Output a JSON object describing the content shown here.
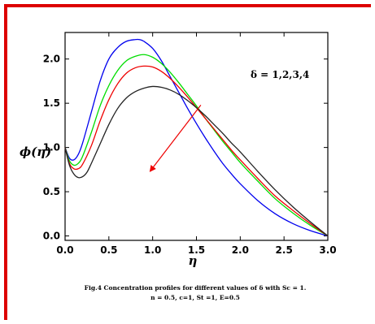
{
  "frame_color": "#dd0000",
  "chart_data": {
    "type": "line",
    "title": "",
    "xlabel": "η",
    "ylabel": "ϕ(η)",
    "xlim": [
      0,
      3.0
    ],
    "ylim": [
      -0.05,
      2.3
    ],
    "xticks": [
      0.0,
      0.5,
      1.0,
      1.5,
      2.0,
      2.5,
      3.0
    ],
    "xtick_labels": [
      "0.0",
      "0.5",
      "1.0",
      "1.5",
      "2.0",
      "2.5",
      "3.0"
    ],
    "yticks": [
      0.0,
      0.5,
      1.0,
      1.5,
      2.0
    ],
    "ytick_labels": [
      "0.0",
      "0.5",
      "1.0",
      "1.5",
      "2.0"
    ],
    "grid": false,
    "legend": "none",
    "annotation": {
      "text": "δ = 1,2,3,4",
      "arrow_from": [
        1.55,
        1.48
      ],
      "arrow_to": [
        0.97,
        0.73
      ],
      "arrow_color": "#ee0000"
    },
    "series": [
      {
        "color": "#0000ee",
        "x": [
          0.0,
          0.05,
          0.1,
          0.15,
          0.2,
          0.3,
          0.4,
          0.5,
          0.6,
          0.7,
          0.8,
          0.85,
          0.9,
          1.0,
          1.1,
          1.2,
          1.3,
          1.4,
          1.5,
          1.6,
          1.7,
          1.8,
          1.9,
          2.0,
          2.2,
          2.4,
          2.6,
          2.8,
          3.0
        ],
        "y": [
          1.0,
          0.88,
          0.86,
          0.92,
          1.05,
          1.4,
          1.75,
          2.0,
          2.13,
          2.2,
          2.22,
          2.22,
          2.2,
          2.12,
          1.98,
          1.8,
          1.62,
          1.44,
          1.27,
          1.11,
          0.96,
          0.82,
          0.7,
          0.59,
          0.4,
          0.25,
          0.14,
          0.06,
          0.0
        ]
      },
      {
        "color": "#00dd00",
        "x": [
          0.0,
          0.05,
          0.1,
          0.15,
          0.2,
          0.3,
          0.4,
          0.5,
          0.6,
          0.7,
          0.8,
          0.9,
          1.0,
          1.1,
          1.2,
          1.3,
          1.4,
          1.5,
          1.6,
          1.7,
          1.8,
          1.9,
          2.0,
          2.2,
          2.4,
          2.6,
          2.8,
          3.0
        ],
        "y": [
          1.0,
          0.85,
          0.8,
          0.82,
          0.9,
          1.17,
          1.47,
          1.7,
          1.87,
          1.98,
          2.03,
          2.05,
          2.02,
          1.95,
          1.85,
          1.73,
          1.6,
          1.47,
          1.33,
          1.2,
          1.07,
          0.95,
          0.83,
          0.62,
          0.42,
          0.26,
          0.12,
          0.0
        ]
      },
      {
        "color": "#ee0000",
        "x": [
          0.0,
          0.05,
          0.1,
          0.15,
          0.2,
          0.3,
          0.4,
          0.5,
          0.6,
          0.7,
          0.8,
          0.9,
          1.0,
          1.1,
          1.2,
          1.3,
          1.4,
          1.5,
          1.6,
          1.7,
          1.8,
          1.9,
          2.0,
          2.2,
          2.4,
          2.6,
          2.8,
          3.0
        ],
        "y": [
          1.0,
          0.82,
          0.76,
          0.76,
          0.81,
          1.02,
          1.3,
          1.54,
          1.72,
          1.84,
          1.9,
          1.92,
          1.91,
          1.86,
          1.78,
          1.68,
          1.57,
          1.45,
          1.33,
          1.21,
          1.09,
          0.97,
          0.86,
          0.65,
          0.45,
          0.29,
          0.14,
          0.0
        ]
      },
      {
        "color": "#222222",
        "x": [
          0.0,
          0.05,
          0.1,
          0.15,
          0.2,
          0.25,
          0.3,
          0.4,
          0.5,
          0.6,
          0.7,
          0.8,
          0.9,
          1.0,
          1.1,
          1.2,
          1.3,
          1.4,
          1.5,
          1.6,
          1.7,
          1.8,
          1.9,
          2.0,
          2.2,
          2.4,
          2.6,
          2.8,
          3.0
        ],
        "y": [
          1.0,
          0.8,
          0.7,
          0.66,
          0.67,
          0.72,
          0.82,
          1.04,
          1.26,
          1.44,
          1.56,
          1.63,
          1.67,
          1.69,
          1.68,
          1.65,
          1.6,
          1.53,
          1.45,
          1.36,
          1.26,
          1.16,
          1.05,
          0.95,
          0.73,
          0.52,
          0.33,
          0.16,
          0.0
        ]
      }
    ]
  },
  "caption": {
    "line1": "Fig.4 Concentration profiles for different values of  δ  with Sc = 1.",
    "line2": "n = 0.5,  c=1,  St =1, E=0.5"
  }
}
